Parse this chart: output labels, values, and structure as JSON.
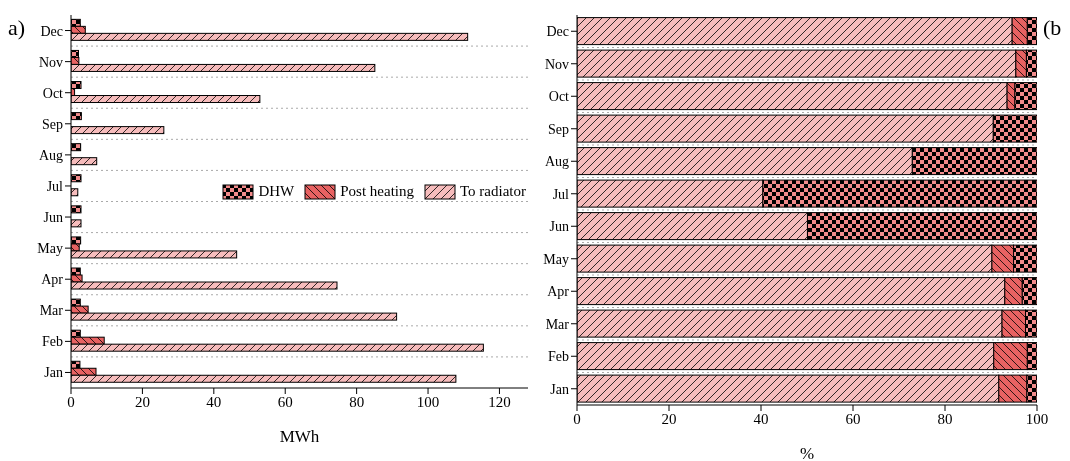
{
  "chart_data": [
    {
      "type": "bar",
      "orientation": "horizontal",
      "xlabel": "MWh",
      "annotations": [
        "a)"
      ],
      "categories": [
        "Dec",
        "Nov",
        "Oct",
        "Sep",
        "Aug",
        "Jul",
        "Jun",
        "May",
        "Apr",
        "Mar",
        "Feb",
        "Jan"
      ],
      "series": [
        {
          "name": "DHW",
          "color": "#f28b8b",
          "values": [
            2.6,
            2.1,
            2.8,
            2.9,
            2.7,
            2.8,
            2.8,
            2.7,
            2.6,
            2.6,
            2.6,
            2.5
          ]
        },
        {
          "name": "Post heating",
          "color": "#e86262",
          "values": [
            4.0,
            2.2,
            1.0,
            0,
            0,
            0,
            0,
            2.3,
            3.1,
            4.8,
            9.3,
            7.0
          ]
        },
        {
          "name": "To radiator",
          "color": "#f6bcbc",
          "values": [
            111.1,
            85.1,
            52.9,
            26.0,
            7.2,
            1.9,
            2.8,
            46.4,
            74.5,
            91.2,
            115.5,
            107.8
          ]
        }
      ],
      "xlim": [
        0,
        128
      ],
      "xticks": [
        0,
        20,
        40,
        60,
        80,
        100,
        120
      ],
      "grid": "y",
      "legend": "right"
    },
    {
      "type": "bar",
      "orientation": "horizontal",
      "stacked": true,
      "xlabel": "%",
      "annotations": [
        "(b"
      ],
      "categories": [
        "Dec",
        "Nov",
        "Oct",
        "Sep",
        "Aug",
        "Jul",
        "Jun",
        "May",
        "Apr",
        "Mar",
        "Feb",
        "Jan"
      ],
      "series": [
        {
          "color": "#f6bcbc",
          "values": [
            94.6,
            95.4,
            93.5,
            90.5,
            72.9,
            40.4,
            50.1,
            90.2,
            93.0,
            92.4,
            90.6,
            91.7
          ]
        },
        {
          "color": "#e86262",
          "values": [
            3.3,
            2.3,
            1.7,
            0,
            0,
            0,
            0,
            4.7,
            3.8,
            5.1,
            7.3,
            6.1
          ]
        },
        {
          "color": "#f28b8b",
          "values": [
            2.1,
            2.3,
            4.8,
            9.5,
            27.1,
            59.6,
            49.9,
            5.1,
            3.2,
            2.5,
            2.1,
            2.2
          ]
        }
      ],
      "xlim": [
        0,
        100
      ],
      "xticks": [
        0,
        20,
        40,
        60,
        80,
        100
      ],
      "grid": "y"
    }
  ]
}
